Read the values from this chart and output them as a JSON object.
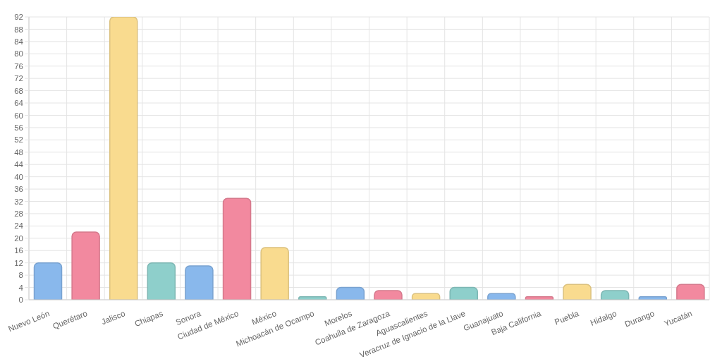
{
  "chart_data": {
    "type": "bar",
    "categories": [
      "Nuevo León",
      "Querétaro",
      "Jalisco",
      "Chiapas",
      "Sonora",
      "Ciudad de México",
      "México",
      "Michoacán de Ocampo",
      "Morelos",
      "Coahuila de Zaragoza",
      "Aguascalientes",
      "Veracruz de Ignacio de la Llave",
      "Guanajuato",
      "Baja California",
      "Puebla",
      "Hidalgo",
      "Durango",
      "Yucatán"
    ],
    "values": [
      12,
      22,
      92,
      12,
      11,
      33,
      17,
      1,
      4,
      3,
      2,
      4,
      2,
      1,
      5,
      3,
      1,
      5
    ],
    "colors": [
      "#89b8ec",
      "#f2899f",
      "#f9db8f",
      "#8ecfcb",
      "#89b8ec",
      "#f2899f",
      "#f9db8f",
      "#8ecfcb",
      "#89b8ec",
      "#f2899f",
      "#f9db8f",
      "#8ecfcb",
      "#89b8ec",
      "#f2899f",
      "#f9db8f",
      "#8ecfcb",
      "#89b8ec",
      "#f2899f"
    ],
    "ylim": [
      0,
      92
    ],
    "yticks": [
      0,
      4,
      8,
      12,
      16,
      20,
      24,
      28,
      32,
      36,
      40,
      44,
      48,
      52,
      56,
      60,
      64,
      68,
      72,
      76,
      80,
      84,
      88,
      92
    ],
    "grid": true
  }
}
